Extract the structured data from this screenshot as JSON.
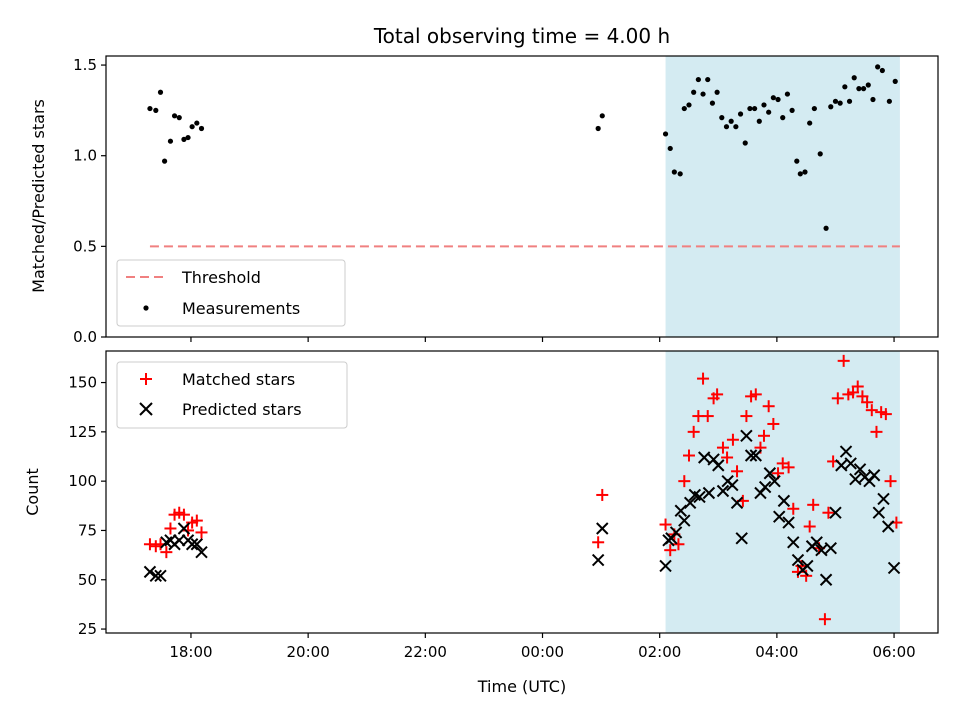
{
  "chart_data": {
    "type": "scatter",
    "title": "Total observing time = 4.00 h",
    "xlabel": "Time (UTC)",
    "x_ticks": [
      "18:00",
      "20:00",
      "22:00",
      "00:00",
      "02:00",
      "04:00",
      "06:00"
    ],
    "x_tick_hours": [
      18,
      20,
      22,
      24,
      26,
      28,
      30
    ],
    "xlim_hours": [
      16.55,
      30.75
    ],
    "highlight_span_hours": [
      26.1,
      30.1
    ],
    "highlight_color": "#d4ebf2",
    "panels": [
      {
        "id": "ratio",
        "ylabel": "Matched/Predicted stars",
        "ylim": [
          0,
          1.55
        ],
        "y_ticks": [
          0.0,
          0.5,
          1.0,
          1.5
        ],
        "y_tick_labels": [
          "0.0",
          "0.5",
          "1.0",
          "1.5"
        ],
        "legend_position": "lower-left",
        "threshold": {
          "name": "Threshold",
          "value": 0.5,
          "x_range_hours": [
            17.3,
            30.1
          ],
          "color": "#f08080"
        },
        "series": [
          {
            "name": "Measurements",
            "marker": "dot",
            "color": "#000000",
            "points": [
              [
                17.3,
                1.26
              ],
              [
                17.4,
                1.25
              ],
              [
                17.48,
                1.35
              ],
              [
                17.55,
                0.97
              ],
              [
                17.65,
                1.08
              ],
              [
                17.72,
                1.22
              ],
              [
                17.8,
                1.21
              ],
              [
                17.88,
                1.09
              ],
              [
                17.95,
                1.1
              ],
              [
                18.02,
                1.16
              ],
              [
                18.1,
                1.18
              ],
              [
                18.18,
                1.15
              ],
              [
                24.95,
                1.15
              ],
              [
                25.02,
                1.22
              ],
              [
                26.1,
                1.12
              ],
              [
                26.18,
                1.04
              ],
              [
                26.25,
                0.91
              ],
              [
                26.35,
                0.9
              ],
              [
                26.42,
                1.26
              ],
              [
                26.5,
                1.28
              ],
              [
                26.58,
                1.35
              ],
              [
                26.66,
                1.42
              ],
              [
                26.74,
                1.34
              ],
              [
                26.82,
                1.42
              ],
              [
                26.9,
                1.29
              ],
              [
                26.98,
                1.35
              ],
              [
                27.06,
                1.21
              ],
              [
                27.14,
                1.16
              ],
              [
                27.22,
                1.19
              ],
              [
                27.3,
                1.16
              ],
              [
                27.38,
                1.23
              ],
              [
                27.46,
                1.07
              ],
              [
                27.54,
                1.26
              ],
              [
                27.62,
                1.26
              ],
              [
                27.7,
                1.19
              ],
              [
                27.78,
                1.28
              ],
              [
                27.86,
                1.24
              ],
              [
                27.94,
                1.32
              ],
              [
                28.02,
                1.31
              ],
              [
                28.1,
                1.21
              ],
              [
                28.18,
                1.34
              ],
              [
                28.26,
                1.25
              ],
              [
                28.34,
                0.97
              ],
              [
                28.4,
                0.9
              ],
              [
                28.48,
                0.91
              ],
              [
                28.56,
                1.18
              ],
              [
                28.64,
                1.26
              ],
              [
                28.74,
                1.01
              ],
              [
                28.84,
                0.6
              ],
              [
                28.92,
                1.27
              ],
              [
                29.0,
                1.3
              ],
              [
                29.08,
                1.29
              ],
              [
                29.16,
                1.38
              ],
              [
                29.24,
                1.3
              ],
              [
                29.32,
                1.43
              ],
              [
                29.4,
                1.37
              ],
              [
                29.48,
                1.37
              ],
              [
                29.56,
                1.39
              ],
              [
                29.64,
                1.31
              ],
              [
                29.72,
                1.49
              ],
              [
                29.8,
                1.47
              ],
              [
                29.92,
                1.3
              ],
              [
                30.02,
                1.41
              ]
            ]
          }
        ]
      },
      {
        "id": "count",
        "ylabel": "Count",
        "ylim": [
          23,
          166
        ],
        "y_ticks": [
          25,
          50,
          75,
          100,
          125,
          150
        ],
        "y_tick_labels": [
          "25",
          "50",
          "75",
          "100",
          "125",
          "150"
        ],
        "legend_position": "upper-left",
        "series": [
          {
            "name": "Matched stars",
            "marker": "plus",
            "color": "#ff0000",
            "points": [
              [
                17.3,
                68
              ],
              [
                17.4,
                67
              ],
              [
                17.48,
                68
              ],
              [
                17.58,
                64
              ],
              [
                17.65,
                76
              ],
              [
                17.72,
                83
              ],
              [
                17.8,
                84
              ],
              [
                17.88,
                83
              ],
              [
                17.95,
                75
              ],
              [
                18.02,
                79
              ],
              [
                18.1,
                80
              ],
              [
                18.18,
                74
              ],
              [
                24.95,
                69
              ],
              [
                25.02,
                93
              ],
              [
                26.1,
                78
              ],
              [
                26.18,
                65
              ],
              [
                26.25,
                73
              ],
              [
                26.32,
                68
              ],
              [
                26.42,
                100
              ],
              [
                26.5,
                113
              ],
              [
                26.58,
                125
              ],
              [
                26.66,
                133
              ],
              [
                26.74,
                152
              ],
              [
                26.82,
                133
              ],
              [
                26.92,
                142
              ],
              [
                26.98,
                144
              ],
              [
                27.08,
                117
              ],
              [
                27.15,
                112
              ],
              [
                27.25,
                121
              ],
              [
                27.32,
                105
              ],
              [
                27.42,
                90
              ],
              [
                27.48,
                133
              ],
              [
                27.56,
                143
              ],
              [
                27.64,
                144
              ],
              [
                27.72,
                117
              ],
              [
                27.78,
                123
              ],
              [
                27.86,
                138
              ],
              [
                27.94,
                129
              ],
              [
                28.02,
                104
              ],
              [
                28.1,
                109
              ],
              [
                28.2,
                107
              ],
              [
                28.28,
                86
              ],
              [
                28.36,
                54
              ],
              [
                28.42,
                57
              ],
              [
                28.5,
                52
              ],
              [
                28.56,
                77
              ],
              [
                28.62,
                88
              ],
              [
                28.72,
                66
              ],
              [
                28.82,
                30
              ],
              [
                28.88,
                84
              ],
              [
                28.96,
                110
              ],
              [
                29.04,
                142
              ],
              [
                29.14,
                161
              ],
              [
                29.22,
                144
              ],
              [
                29.3,
                145
              ],
              [
                29.38,
                148
              ],
              [
                29.46,
                143
              ],
              [
                29.54,
                140
              ],
              [
                29.62,
                136
              ],
              [
                29.7,
                125
              ],
              [
                29.78,
                135
              ],
              [
                29.86,
                134
              ],
              [
                29.94,
                100
              ],
              [
                30.04,
                79
              ]
            ]
          },
          {
            "name": "Predicted stars",
            "marker": "x",
            "color": "#000000",
            "points": [
              [
                17.3,
                54
              ],
              [
                17.4,
                52
              ],
              [
                17.48,
                52
              ],
              [
                17.58,
                69
              ],
              [
                17.65,
                70
              ],
              [
                17.72,
                68
              ],
              [
                17.8,
                70
              ],
              [
                17.88,
                76
              ],
              [
                17.95,
                70
              ],
              [
                18.02,
                68
              ],
              [
                18.1,
                68
              ],
              [
                18.18,
                64
              ],
              [
                24.95,
                60
              ],
              [
                25.02,
                76
              ],
              [
                26.1,
                57
              ],
              [
                26.15,
                70
              ],
              [
                26.2,
                71
              ],
              [
                26.28,
                74
              ],
              [
                26.36,
                85
              ],
              [
                26.42,
                80
              ],
              [
                26.52,
                89
              ],
              [
                26.6,
                93
              ],
              [
                26.68,
                92
              ],
              [
                26.76,
                112
              ],
              [
                26.84,
                94
              ],
              [
                26.92,
                111
              ],
              [
                27.0,
                108
              ],
              [
                27.08,
                95
              ],
              [
                27.16,
                100
              ],
              [
                27.24,
                98
              ],
              [
                27.32,
                89
              ],
              [
                27.4,
                71
              ],
              [
                27.48,
                123
              ],
              [
                27.56,
                113
              ],
              [
                27.64,
                113
              ],
              [
                27.72,
                94
              ],
              [
                27.8,
                97
              ],
              [
                27.88,
                104
              ],
              [
                27.96,
                100
              ],
              [
                28.04,
                82
              ],
              [
                28.12,
                90
              ],
              [
                28.2,
                79
              ],
              [
                28.28,
                69
              ],
              [
                28.36,
                60
              ],
              [
                28.44,
                55
              ],
              [
                28.52,
                57
              ],
              [
                28.6,
                67
              ],
              [
                28.68,
                69
              ],
              [
                28.76,
                65
              ],
              [
                28.84,
                50
              ],
              [
                28.92,
                66
              ],
              [
                29.0,
                84
              ],
              [
                29.1,
                108
              ],
              [
                29.18,
                115
              ],
              [
                29.26,
                109
              ],
              [
                29.34,
                101
              ],
              [
                29.42,
                106
              ],
              [
                29.5,
                102
              ],
              [
                29.58,
                100
              ],
              [
                29.66,
                103
              ],
              [
                29.74,
                84
              ],
              [
                29.82,
                91
              ],
              [
                29.9,
                77
              ],
              [
                30.0,
                56
              ]
            ]
          }
        ]
      }
    ]
  }
}
